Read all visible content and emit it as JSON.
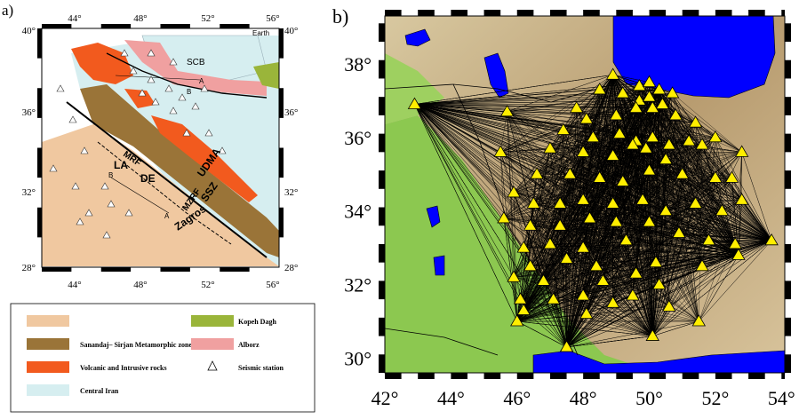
{
  "panel_a": {
    "label": "a)",
    "top_ticks": [
      "44°",
      "48°",
      "52°",
      "56°"
    ],
    "bottom_ticks": [
      "44°",
      "48°",
      "52°",
      "56°"
    ],
    "left_ticks": [
      "40°",
      "36°",
      "32°",
      "28°"
    ],
    "right_ticks": [
      "40°",
      "36°",
      "32°",
      "28°"
    ],
    "map_labels": {
      "scb": "SCB",
      "earth": "Earth",
      "mrf": "MRF",
      "la": "LA",
      "de": "DE",
      "udma": "UDMA",
      "ssz": "SSZ",
      "mzrf": "MZRF",
      "zagros": "Zagros",
      "a_upper": "A",
      "b_upper": "B",
      "a_lower": "A",
      "b_lower": "B"
    },
    "legend": [
      {
        "label": "",
        "color": "#f0c8a0"
      },
      {
        "label": "Sanandaj– Sirjan Metamorphic zone",
        "color": "#9a7438"
      },
      {
        "label": "Volcanic and Intrusive rocks",
        "color": "#f25a1e"
      },
      {
        "label": "Central Iran",
        "color": "#d6eef0"
      },
      {
        "label": "Kopeh Dagh",
        "color": "#9ab53a"
      },
      {
        "label": "Alborz",
        "color": "#f0a0a0"
      },
      {
        "label": "Seismic station",
        "color": "#ffffff"
      }
    ]
  },
  "panel_b": {
    "label": "b)",
    "x_ticks": [
      "42°",
      "44°",
      "46°",
      "48°",
      "50°",
      "52°",
      "54°"
    ],
    "y_ticks": [
      "38°",
      "36°",
      "34°",
      "32°",
      "30°"
    ],
    "station_color": "#ffee00",
    "path_color": "#000000",
    "sea_color": "#0000ff",
    "lowland_color": "#8cc850",
    "highland_color": "#c8b48c",
    "stations": [
      [
        42.9,
        36.9
      ],
      [
        45.7,
        36.7
      ],
      [
        47.8,
        36.8
      ],
      [
        48.9,
        37.7
      ],
      [
        48.5,
        37.3
      ],
      [
        49.2,
        37.2
      ],
      [
        49.7,
        37.4
      ],
      [
        50.0,
        37.5
      ],
      [
        50.3,
        37.3
      ],
      [
        50.7,
        37.2
      ],
      [
        49.7,
        37.0
      ],
      [
        50.0,
        37.1
      ],
      [
        50.4,
        36.9
      ],
      [
        48.1,
        36.5
      ],
      [
        49.0,
        36.6
      ],
      [
        49.6,
        36.8
      ],
      [
        50.1,
        36.8
      ],
      [
        50.8,
        36.6
      ],
      [
        51.4,
        36.4
      ],
      [
        47.4,
        36.2
      ],
      [
        48.3,
        36.0
      ],
      [
        49.1,
        36.1
      ],
      [
        49.6,
        35.9
      ],
      [
        50.1,
        36.0
      ],
      [
        50.6,
        35.8
      ],
      [
        51.2,
        35.9
      ],
      [
        51.6,
        35.8
      ],
      [
        52.0,
        36.0
      ],
      [
        52.8,
        35.6
      ],
      [
        45.5,
        35.6
      ],
      [
        47.0,
        35.7
      ],
      [
        48.0,
        35.6
      ],
      [
        48.9,
        35.5
      ],
      [
        49.5,
        35.8
      ],
      [
        49.9,
        35.7
      ],
      [
        50.5,
        35.4
      ],
      [
        46.6,
        35.0
      ],
      [
        47.6,
        35.0
      ],
      [
        48.5,
        34.9
      ],
      [
        49.2,
        34.8
      ],
      [
        50.0,
        35.1
      ],
      [
        51.0,
        35.0
      ],
      [
        52.0,
        34.9
      ],
      [
        52.5,
        34.9
      ],
      [
        45.9,
        34.5
      ],
      [
        46.5,
        34.2
      ],
      [
        47.3,
        34.2
      ],
      [
        48.0,
        34.3
      ],
      [
        48.9,
        34.2
      ],
      [
        49.8,
        34.3
      ],
      [
        50.5,
        34.0
      ],
      [
        51.4,
        34.2
      ],
      [
        52.2,
        34.0
      ],
      [
        52.8,
        34.3
      ],
      [
        45.6,
        33.8
      ],
      [
        46.4,
        33.6
      ],
      [
        47.3,
        33.6
      ],
      [
        48.2,
        33.8
      ],
      [
        49.0,
        33.7
      ],
      [
        50.0,
        33.7
      ],
      [
        50.9,
        33.4
      ],
      [
        51.8,
        33.2
      ],
      [
        52.6,
        33.1
      ],
      [
        53.7,
        33.2
      ],
      [
        46.2,
        33.0
      ],
      [
        47.0,
        33.1
      ],
      [
        48.0,
        33.0
      ],
      [
        49.3,
        33.2
      ],
      [
        52.7,
        32.8
      ],
      [
        46.4,
        32.5
      ],
      [
        47.5,
        32.7
      ],
      [
        48.4,
        32.5
      ],
      [
        50.2,
        32.6
      ],
      [
        51.6,
        32.5
      ],
      [
        45.9,
        32.2
      ],
      [
        46.8,
        32.1
      ],
      [
        48.6,
        32.1
      ],
      [
        49.6,
        32.3
      ],
      [
        50.3,
        32.0
      ],
      [
        46.1,
        31.6
      ],
      [
        47.1,
        31.6
      ],
      [
        48.0,
        31.7
      ],
      [
        48.9,
        31.5
      ],
      [
        49.5,
        31.7
      ],
      [
        50.6,
        31.4
      ],
      [
        46.2,
        31.3
      ],
      [
        48.1,
        31.2
      ],
      [
        51.5,
        31.0
      ],
      [
        46.0,
        31.0
      ],
      [
        47.5,
        30.3
      ],
      [
        47.5,
        30.3
      ],
      [
        50.1,
        30.6
      ]
    ],
    "hubs": [
      [
        42.9,
        36.9
      ],
      [
        53.7,
        33.2
      ],
      [
        47.5,
        30.3
      ],
      [
        50.1,
        30.6
      ],
      [
        46.0,
        31.0
      ],
      [
        52.7,
        32.8
      ],
      [
        48.9,
        37.7
      ],
      [
        50.3,
        37.3
      ]
    ]
  }
}
